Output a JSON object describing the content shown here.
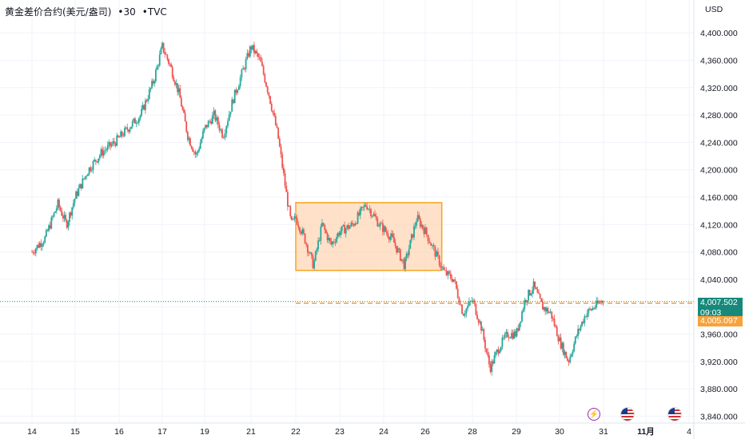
{
  "header": {
    "symbol": "黄金差价合约(美元/盎司)",
    "interval": "30",
    "source": "TVC",
    "separator": "•"
  },
  "price_axis": {
    "currency": "USD"
  },
  "badges": {
    "last_price": "4,007.502",
    "countdown": "09:03",
    "level_price": "4,005.097"
  },
  "events": [
    {
      "icon": "lightning-icon",
      "color": "#9c27b0"
    },
    {
      "icon": "us-flag-icon"
    },
    {
      "icon": "us-flag-icon"
    }
  ],
  "colors": {
    "up": "#26a69a",
    "down": "#ef5350",
    "box_fill": "#fdd7b5",
    "box_border": "#f5a623",
    "level_line": "#f29d38",
    "last_price_bg": "#16897b",
    "level_bg": "#f7a23a"
  },
  "chart_data": {
    "type": "candlestick",
    "title": "黄金差价合约(美元/盎司) · 30 · TVC",
    "ylabel": "USD",
    "ylim": [
      3830,
      4420
    ],
    "y_ticks": [
      3840,
      3880,
      3920,
      3960,
      4000,
      4040,
      4080,
      4120,
      4160,
      4200,
      4240,
      4280,
      4320,
      4360,
      4400
    ],
    "y_tick_labels": [
      "3,840.000",
      "3,880.000",
      "3,920.000",
      "3,960.000",
      "4,000.000",
      "4,040.000",
      "4,080.000",
      "4,120.000",
      "4,160.000",
      "4,200.000",
      "4,240.000",
      "4,280.000",
      "4,320.000",
      "4,360.000",
      "4,400.000"
    ],
    "x_tick_labels": [
      "14",
      "15",
      "16",
      "17",
      "19",
      "21",
      "22",
      "23",
      "24",
      "26",
      "28",
      "29",
      "30",
      "31",
      "11月",
      "4"
    ],
    "x_ticks_index": [
      0,
      1,
      2,
      3,
      4,
      5,
      6,
      7,
      8,
      9,
      10,
      11,
      12,
      13,
      14,
      15
    ],
    "price_path": [
      [
        0,
        4080
      ],
      [
        0.3,
        4100
      ],
      [
        0.6,
        4150
      ],
      [
        0.8,
        4120
      ],
      [
        1,
        4160
      ],
      [
        1.3,
        4200
      ],
      [
        1.6,
        4225
      ],
      [
        1.9,
        4240
      ],
      [
        2.2,
        4260
      ],
      [
        2.5,
        4280
      ],
      [
        2.8,
        4330
      ],
      [
        3,
        4380
      ],
      [
        3.2,
        4350
      ],
      [
        3.4,
        4310
      ],
      [
        3.6,
        4250
      ],
      [
        3.8,
        4220
      ],
      [
        4,
        4260
      ],
      [
        4.2,
        4280
      ],
      [
        4.4,
        4250
      ],
      [
        4.6,
        4300
      ],
      [
        4.8,
        4340
      ],
      [
        5,
        4380
      ],
      [
        5.2,
        4360
      ],
      [
        5.4,
        4310
      ],
      [
        5.6,
        4250
      ],
      [
        5.8,
        4160
      ],
      [
        5.9,
        4120
      ],
      [
        6,
        4130
      ],
      [
        6.2,
        4100
      ],
      [
        6.4,
        4060
      ],
      [
        6.6,
        4120
      ],
      [
        6.8,
        4090
      ],
      [
        7,
        4110
      ],
      [
        7.3,
        4120
      ],
      [
        7.6,
        4150
      ],
      [
        7.9,
        4120
      ],
      [
        8.2,
        4100
      ],
      [
        8.5,
        4060
      ],
      [
        8.8,
        4130
      ],
      [
        9,
        4110
      ],
      [
        9.2,
        4080
      ],
      [
        9.4,
        4050
      ],
      [
        9.6,
        4040
      ],
      [
        9.8,
        3990
      ],
      [
        10,
        4010
      ],
      [
        10.2,
        3970
      ],
      [
        10.4,
        3910
      ],
      [
        10.6,
        3940
      ],
      [
        10.8,
        3960
      ],
      [
        11,
        3960
      ],
      [
        11.2,
        4010
      ],
      [
        11.4,
        4030
      ],
      [
        11.6,
        4000
      ],
      [
        11.8,
        3990
      ],
      [
        12,
        3950
      ],
      [
        12.2,
        3920
      ],
      [
        12.4,
        3960
      ],
      [
        12.6,
        3990
      ],
      [
        12.8,
        4000
      ],
      [
        13,
        4010
      ]
    ],
    "rectangle": {
      "x_from": 6.0,
      "x_to": 9.35,
      "y_from": 4053,
      "y_to": 4152
    },
    "horizontal_line": 4005.097,
    "last_price": 4007.502,
    "grid": true
  }
}
